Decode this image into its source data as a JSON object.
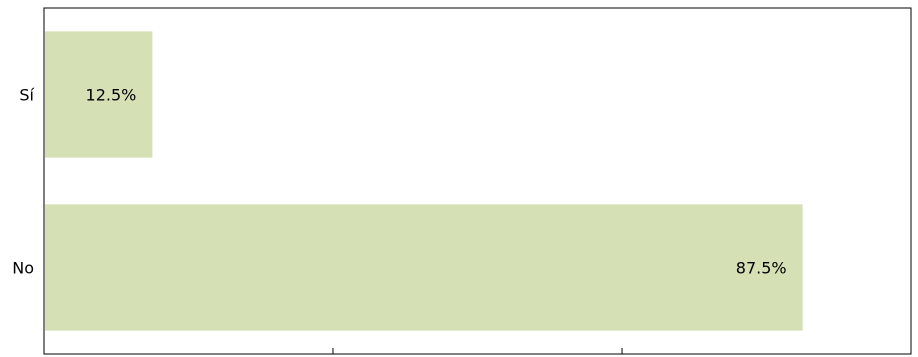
{
  "chart_data": {
    "type": "bar",
    "orientation": "horizontal",
    "categories": [
      "Sí",
      "No"
    ],
    "values": [
      12.5,
      87.5
    ],
    "value_labels": [
      "12.5%",
      "87.5%"
    ],
    "xlim": [
      0,
      100
    ],
    "x_ticks": [
      0,
      33.33,
      66.67,
      100
    ],
    "title": "",
    "xlabel": "",
    "ylabel": "",
    "grid": false,
    "legend": "none",
    "bar_color": "#d6e0b5"
  }
}
